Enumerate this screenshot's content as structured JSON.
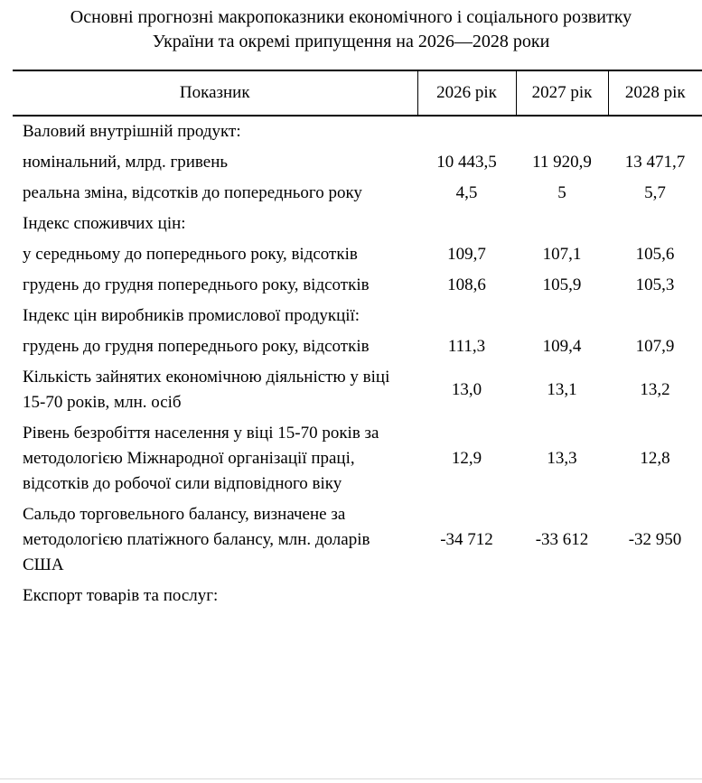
{
  "title": "Основні прогнозні макропоказники економічного і соціального розвитку України та окремі припущення на 2026—2028 роки",
  "colors": {
    "text": "#000000",
    "background": "#ffffff",
    "table_border": "#000000",
    "bottom_separator": "#d9d9d9"
  },
  "table": {
    "columns": [
      "Показник",
      "2026 рік",
      "2027 рік",
      "2028 рік"
    ],
    "rows": [
      {
        "label": "Валовий внутрішній продукт:",
        "type": "section",
        "values": [
          "",
          "",
          ""
        ]
      },
      {
        "label": "номінальний, млрд. гривень",
        "type": "data",
        "values": [
          "10 443,5",
          "11 920,9",
          "13 471,7"
        ]
      },
      {
        "label": "реальна зміна, відсотків до попереднього року",
        "type": "data",
        "values": [
          "4,5",
          "5",
          "5,7"
        ]
      },
      {
        "label": "Індекс споживчих цін:",
        "type": "section",
        "values": [
          "",
          "",
          ""
        ]
      },
      {
        "label": "у середньому до попереднього року, відсотків",
        "type": "data",
        "values": [
          "109,7",
          "107,1",
          "105,6"
        ]
      },
      {
        "label": "грудень до грудня попереднього року, відсотків",
        "type": "data",
        "values": [
          "108,6",
          "105,9",
          "105,3"
        ]
      },
      {
        "label": "Індекс цін виробників промислової продукції:",
        "type": "section",
        "values": [
          "",
          "",
          ""
        ]
      },
      {
        "label": "грудень до грудня попереднього року, відсотків",
        "type": "data",
        "values": [
          "111,3",
          "109,4",
          "107,9"
        ]
      },
      {
        "label": "Кількість зайнятих економічною діяльністю у віці 15-70 років, млн. осіб",
        "type": "data",
        "values": [
          "13,0",
          "13,1",
          "13,2"
        ]
      },
      {
        "label": "Рівень безробіття населення у віці 15-70 років за методологією Міжнародної організації праці, відсотків до робочої сили відповідного віку",
        "type": "data",
        "values": [
          "12,9",
          "13,3",
          "12,8"
        ]
      },
      {
        "label": "Сальдо торговельного балансу, визначене за методологією платіжного балансу, млн. доларів США",
        "type": "data",
        "values": [
          "-34 712",
          "-33 612",
          "-32 950"
        ]
      },
      {
        "label": "Експорт товарів та послуг:",
        "type": "section",
        "values": [
          "",
          "",
          ""
        ]
      }
    ]
  }
}
